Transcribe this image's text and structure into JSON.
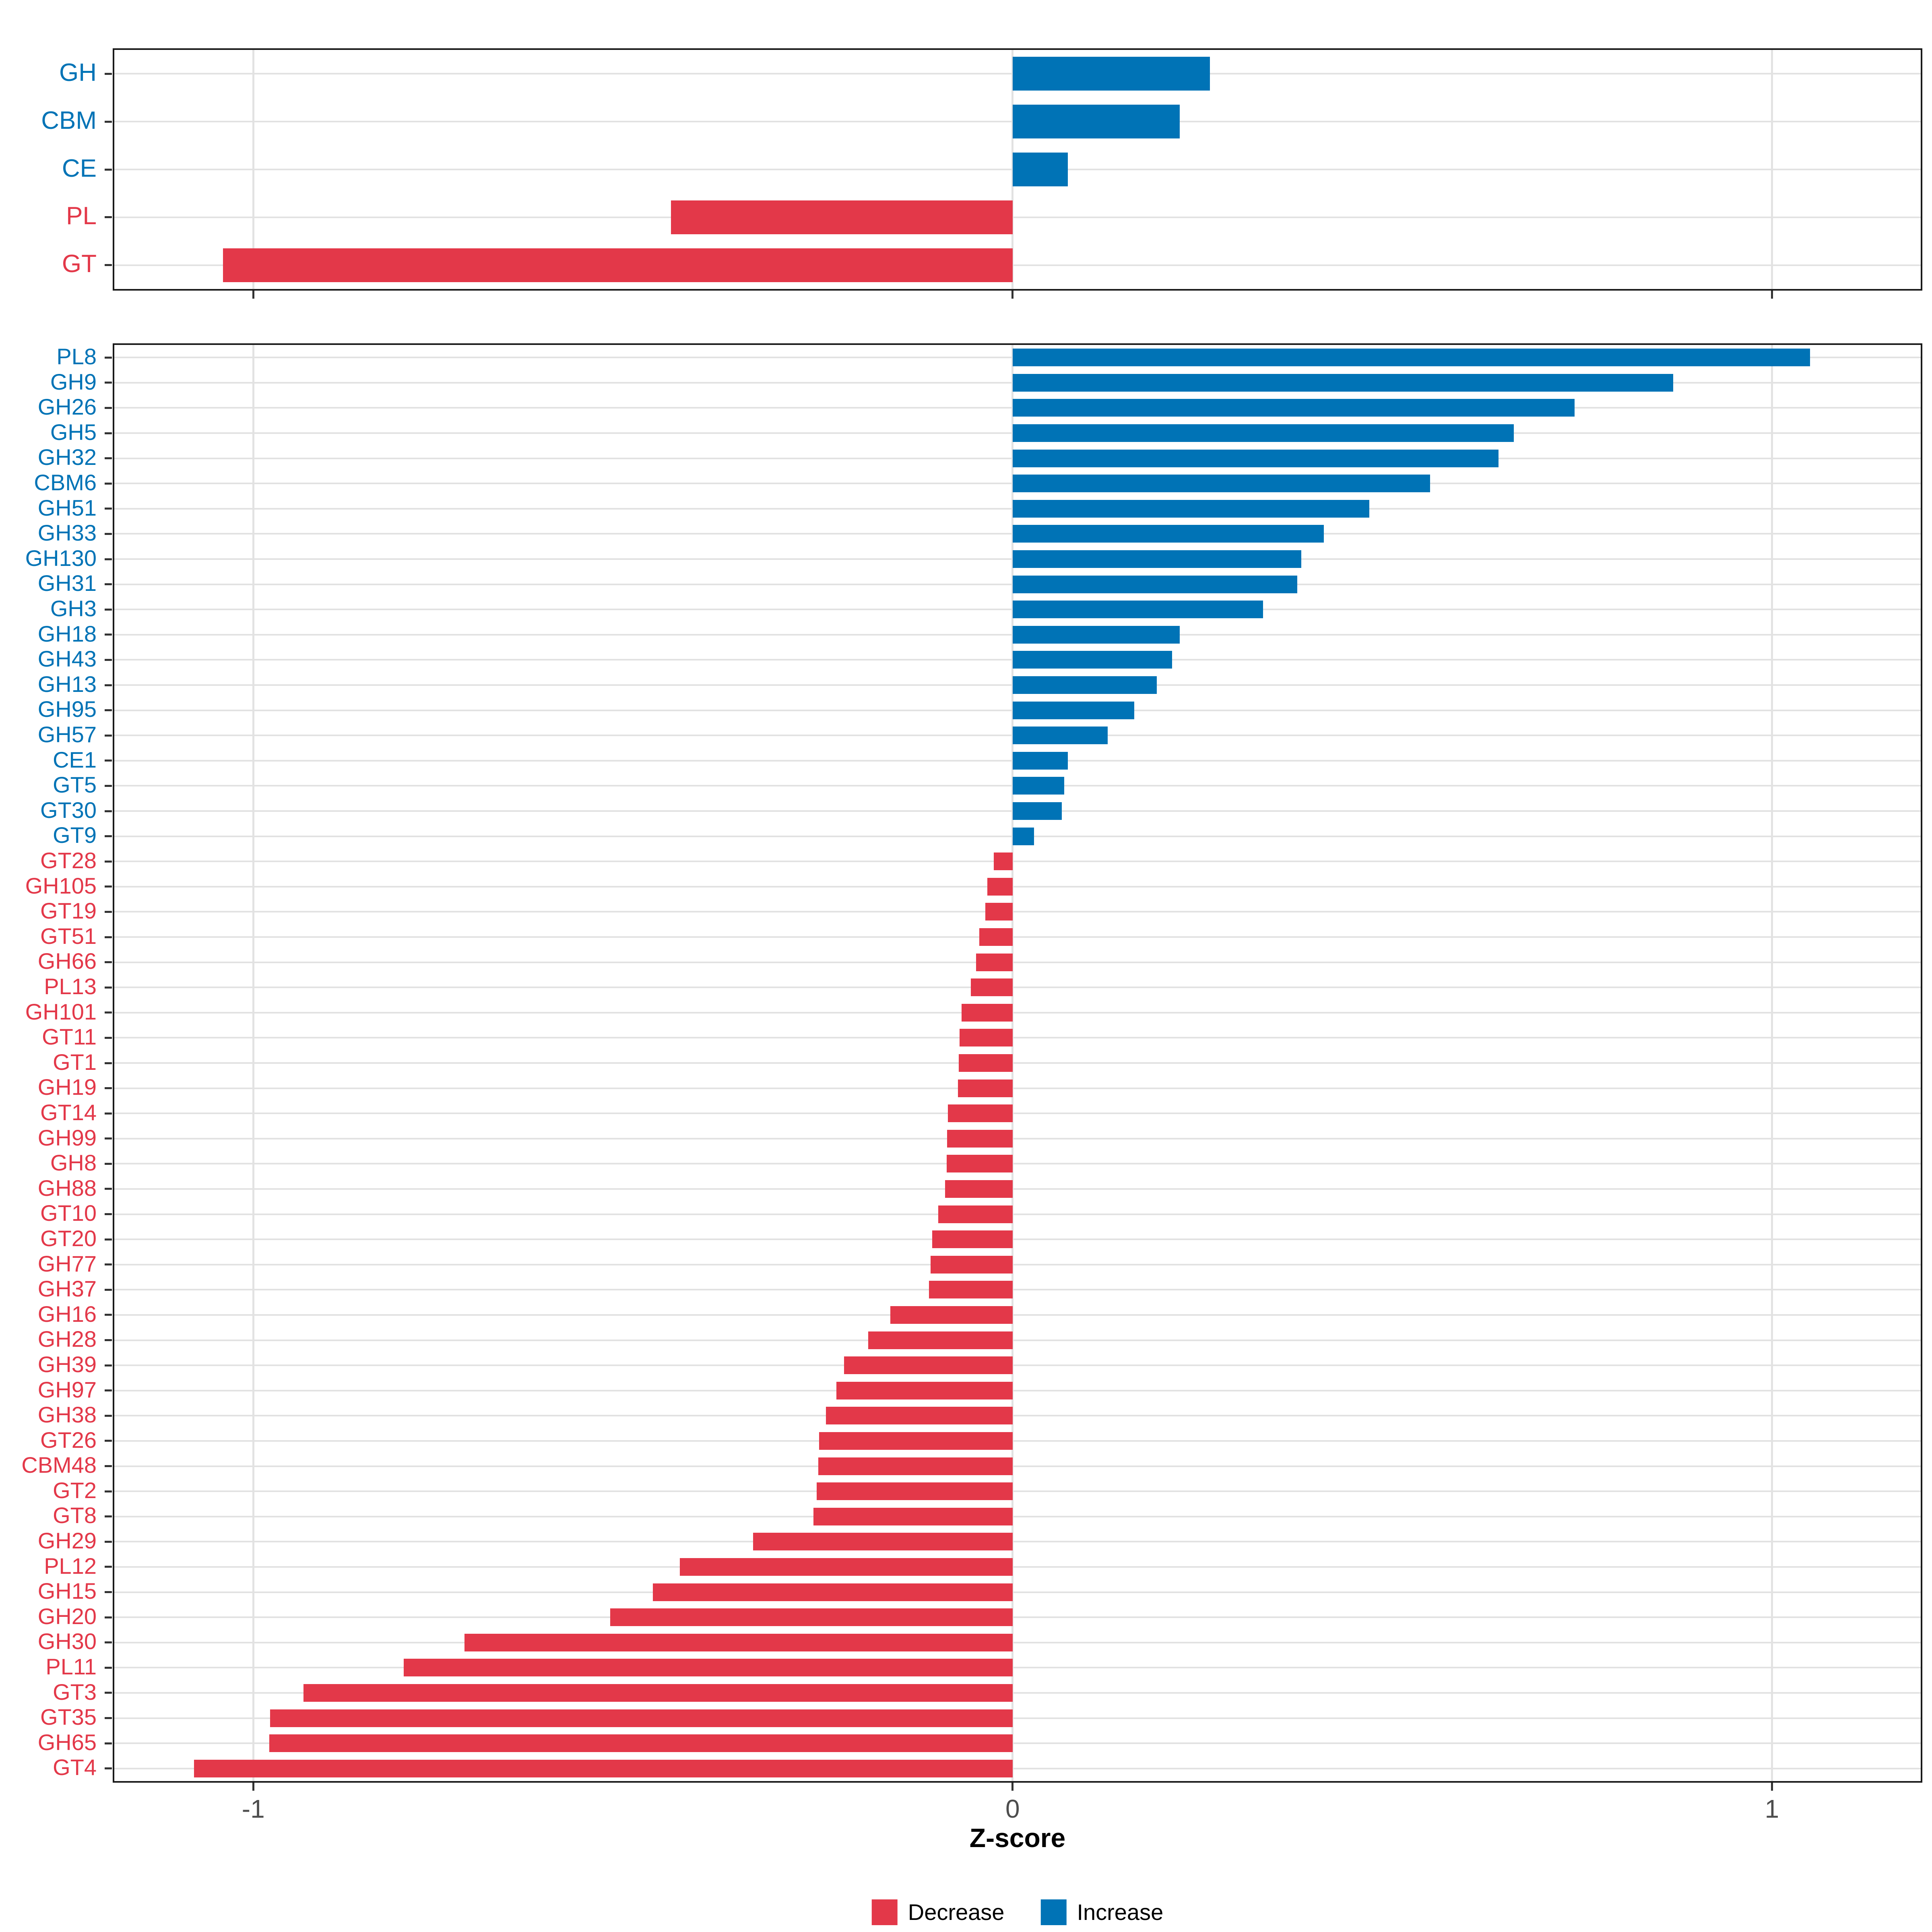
{
  "figure": {
    "xlabel": "Z-score",
    "x_ticks": [
      -1,
      0,
      1
    ],
    "x_tick_labels": [
      "-1",
      "0",
      "1"
    ],
    "x_range": [
      -1.183,
      1.196
    ],
    "colors": {
      "increase": "#0073B6",
      "decrease": "#E33849",
      "grid": "#E2E2E2",
      "panel_border": "#1A1A1A",
      "tick_mark": "#333333",
      "axis_tick_text": "#4D4D4D",
      "background": "#FFFFFF"
    },
    "legend": {
      "position": "bottom-center",
      "items": [
        {
          "label": "Decrease",
          "color": "#E33849"
        },
        {
          "label": "Increase",
          "color": "#0073B6"
        }
      ]
    }
  },
  "chart_data": [
    {
      "type": "bar",
      "orientation": "horizontal",
      "panel": "top-cazyme-class",
      "title": "",
      "xlabel": "Z-score",
      "xlim": [
        -1.183,
        1.196
      ],
      "grid": true,
      "label_color_rule": "blue if increase, red if decrease",
      "categories": [
        "GH",
        "CBM",
        "CE",
        "PL",
        "GT"
      ],
      "values": [
        0.26,
        0.22,
        0.073,
        -0.45,
        -1.04
      ]
    },
    {
      "type": "bar",
      "orientation": "horizontal",
      "panel": "bottom-cazyme-family",
      "title": "",
      "xlabel": "Z-score",
      "xlim": [
        -1.183,
        1.196
      ],
      "grid": true,
      "label_color_rule": "blue if increase, red if decrease",
      "categories": [
        "PL8",
        "GH9",
        "GH26",
        "GH5",
        "GH32",
        "CBM6",
        "GH51",
        "GH33",
        "GH130",
        "GH31",
        "GH3",
        "GH18",
        "GH43",
        "GH13",
        "GH95",
        "GH57",
        "CE1",
        "GT5",
        "GT30",
        "GT9",
        "GT28",
        "GH105",
        "GT19",
        "GT51",
        "GH66",
        "PL13",
        "GH101",
        "GT11",
        "GT1",
        "GH19",
        "GT14",
        "GH99",
        "GH8",
        "GH88",
        "GT10",
        "GT20",
        "GH77",
        "GH37",
        "GH16",
        "GH28",
        "GH39",
        "GH97",
        "GH38",
        "GT26",
        "CBM48",
        "GT2",
        "GT8",
        "GH29",
        "PL12",
        "GH15",
        "GH20",
        "GH30",
        "PL11",
        "GT3",
        "GT35",
        "GH65",
        "GT4"
      ],
      "values": [
        1.05,
        0.87,
        0.74,
        0.66,
        0.64,
        0.55,
        0.47,
        0.41,
        0.38,
        0.375,
        0.33,
        0.22,
        0.21,
        0.19,
        0.16,
        0.125,
        0.073,
        0.068,
        0.065,
        0.028,
        -0.025,
        -0.033,
        -0.036,
        -0.044,
        -0.048,
        -0.055,
        -0.067,
        -0.07,
        -0.071,
        -0.072,
        -0.085,
        -0.086,
        -0.087,
        -0.089,
        -0.098,
        -0.106,
        -0.108,
        -0.11,
        -0.161,
        -0.19,
        -0.222,
        -0.232,
        -0.246,
        -0.255,
        -0.256,
        -0.258,
        -0.262,
        -0.342,
        -0.438,
        -0.474,
        -0.53,
        -0.722,
        -0.802,
        -0.934,
        -0.978,
        -0.979,
        -1.078
      ]
    }
  ]
}
